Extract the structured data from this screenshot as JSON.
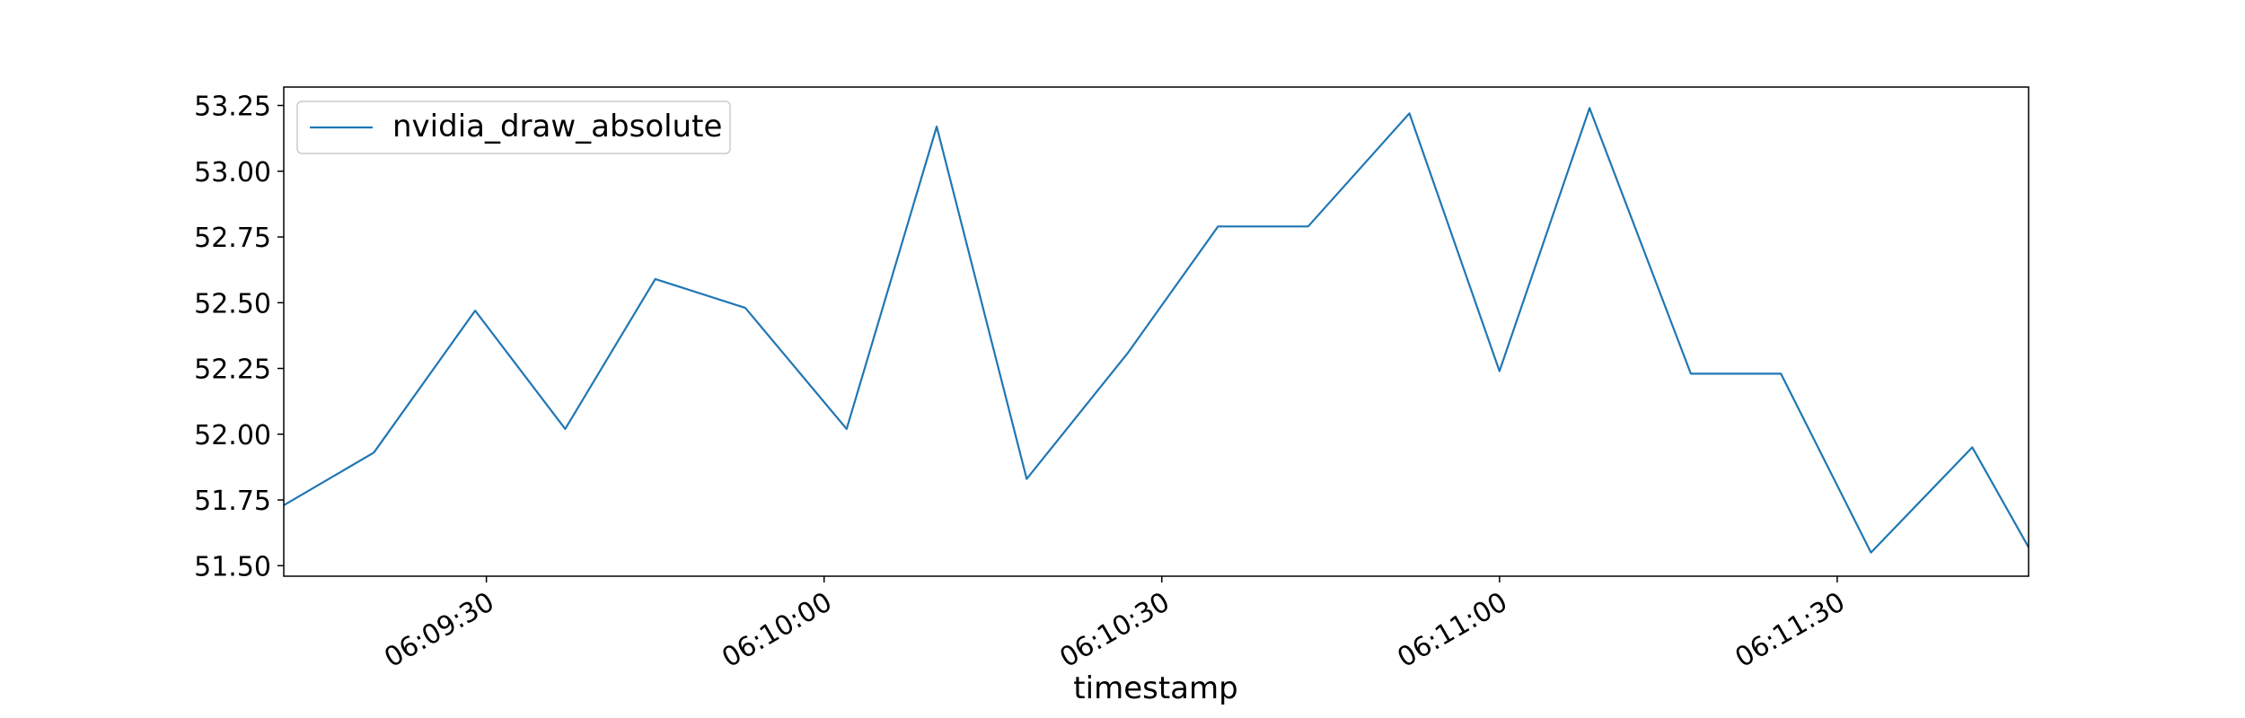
{
  "chart_data": {
    "type": "line",
    "title": "",
    "xlabel": "timestamp",
    "ylabel": "",
    "legend": {
      "placement": "upper-left"
    },
    "grid": false,
    "xlim": [
      "06:09:12",
      "06:11:47"
    ],
    "ylim": [
      51.46,
      53.32
    ],
    "x_ticks": [
      "06:09:30",
      "06:10:00",
      "06:10:30",
      "06:11:00",
      "06:11:30"
    ],
    "y_ticks": [
      "51.50",
      "51.75",
      "52.00",
      "52.25",
      "52.50",
      "52.75",
      "53.00",
      "53.25"
    ],
    "series": [
      {
        "name": "nvidia_draw_absolute",
        "color": "#1f77b4",
        "points": [
          {
            "x": "06:09:12",
            "y": 51.73
          },
          {
            "x": "06:09:20",
            "y": 51.93
          },
          {
            "x": "06:09:29",
            "y": 52.47
          },
          {
            "x": "06:09:37",
            "y": 52.02
          },
          {
            "x": "06:09:45",
            "y": 52.59
          },
          {
            "x": "06:09:53",
            "y": 52.48
          },
          {
            "x": "06:10:02",
            "y": 52.02
          },
          {
            "x": "06:10:10",
            "y": 53.17
          },
          {
            "x": "06:10:18",
            "y": 51.83
          },
          {
            "x": "06:10:27",
            "y": 52.31
          },
          {
            "x": "06:10:35",
            "y": 52.79
          },
          {
            "x": "06:10:43",
            "y": 52.79
          },
          {
            "x": "06:10:52",
            "y": 53.22
          },
          {
            "x": "06:11:00",
            "y": 52.24
          },
          {
            "x": "06:11:08",
            "y": 53.24
          },
          {
            "x": "06:11:17",
            "y": 52.23
          },
          {
            "x": "06:11:25",
            "y": 52.23
          },
          {
            "x": "06:11:33",
            "y": 51.55
          },
          {
            "x": "06:11:42",
            "y": 51.95
          },
          {
            "x": "06:11:47",
            "y": 51.57
          }
        ]
      }
    ]
  }
}
